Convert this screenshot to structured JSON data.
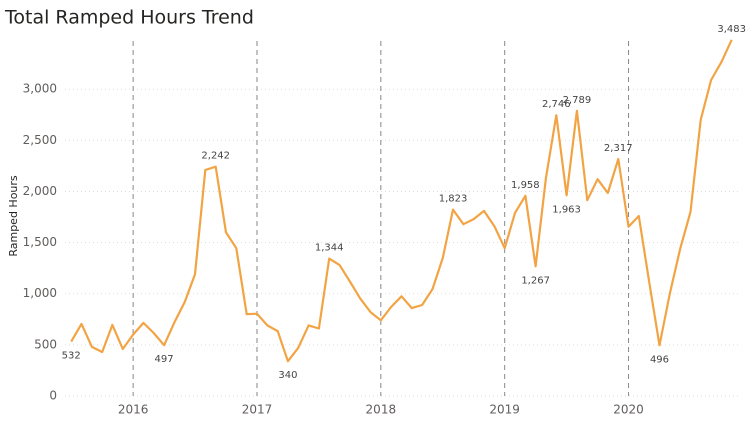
{
  "chart_data": {
    "type": "line",
    "title": "Total Ramped Hours Trend",
    "y_label": "Ramped Hours",
    "color": "#f2a444",
    "grid": true,
    "x": [
      2015.5,
      2015.583,
      2015.667,
      2015.75,
      2015.833,
      2015.917,
      2016,
      2016.083,
      2016.167,
      2016.25,
      2016.333,
      2016.417,
      2016.5,
      2016.583,
      2016.667,
      2016.75,
      2016.833,
      2016.917,
      2017,
      2017.083,
      2017.167,
      2017.25,
      2017.333,
      2017.417,
      2017.5,
      2017.583,
      2017.667,
      2017.75,
      2017.833,
      2017.917,
      2018,
      2018.083,
      2018.167,
      2018.25,
      2018.333,
      2018.417,
      2018.5,
      2018.583,
      2018.667,
      2018.75,
      2018.833,
      2018.917,
      2019,
      2019.083,
      2019.167,
      2019.25,
      2019.333,
      2019.417,
      2019.5,
      2019.583,
      2019.667,
      2019.75,
      2019.833,
      2019.917,
      2020,
      2020.083,
      2020.167,
      2020.25,
      2020.333,
      2020.417,
      2020.5,
      2020.583,
      2020.667,
      2020.75,
      2020.833
    ],
    "values": [
      532,
      705,
      480,
      430,
      695,
      460,
      600,
      715,
      615,
      497,
      720,
      920,
      1190,
      2210,
      2242,
      1600,
      1445,
      800,
      805,
      690,
      635,
      340,
      470,
      690,
      660,
      1344,
      1280,
      1120,
      955,
      820,
      740,
      870,
      975,
      860,
      890,
      1045,
      1350,
      1823,
      1680,
      1730,
      1810,
      1660,
      1445,
      1790,
      1958,
      1267,
      2130,
      2746,
      1963,
      2789,
      1915,
      2120,
      1985,
      2317,
      1655,
      1760,
      1115,
      496,
      1000,
      1440,
      1800,
      2700,
      3090,
      3265,
      3483
    ],
    "value_labels": [
      "532",
      null,
      null,
      null,
      null,
      null,
      null,
      null,
      null,
      "497",
      null,
      null,
      null,
      null,
      "2,242",
      null,
      null,
      null,
      null,
      null,
      null,
      "340",
      null,
      null,
      null,
      "1,344",
      null,
      null,
      null,
      null,
      null,
      null,
      null,
      null,
      null,
      null,
      null,
      "1,823",
      null,
      null,
      null,
      null,
      null,
      null,
      "1,958",
      "1,267",
      null,
      "2,746",
      "1,963",
      "2,789",
      null,
      null,
      null,
      "2,317",
      null,
      null,
      null,
      "496",
      null,
      null,
      null,
      null,
      null,
      null,
      "3,483"
    ],
    "xlim": [
      2015.45,
      2020.9
    ],
    "xticks": [
      2016,
      2017,
      2018,
      2019,
      2020
    ],
    "ylim": [
      0,
      3530
    ],
    "yticks": [
      0,
      500,
      {
        "value": 1000,
        "label": "1,000"
      },
      {
        "value": 1500,
        "label": "1,500"
      },
      {
        "value": 2000,
        "label": "2,000"
      },
      {
        "value": 2500,
        "label": "2,500"
      },
      {
        "value": 3000,
        "label": "3,000"
      }
    ]
  }
}
